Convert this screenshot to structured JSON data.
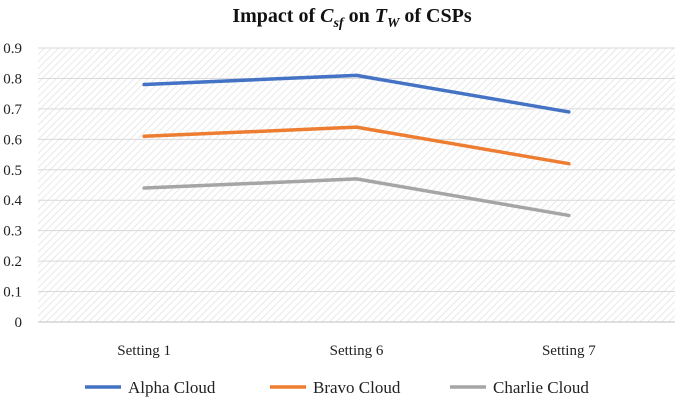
{
  "chart_data": {
    "type": "line",
    "title": {
      "prefix": "Impact of ",
      "var1_base": "C",
      "var1_sub": "sf",
      "middle": " on ",
      "var2_base": "T",
      "var2_sub": "W",
      "suffix": " of CSPs"
    },
    "categories": [
      "Setting 1",
      "Setting 6",
      "Setting 7"
    ],
    "series": [
      {
        "name": "Alpha Cloud",
        "color": "#4472c4",
        "values": [
          0.78,
          0.81,
          0.69
        ]
      },
      {
        "name": "Bravo Cloud",
        "color": "#ed7d31",
        "values": [
          0.61,
          0.64,
          0.52
        ]
      },
      {
        "name": "Charlie Cloud",
        "color": "#a5a5a5",
        "values": [
          0.44,
          0.47,
          0.35
        ]
      }
    ],
    "ylim": [
      0,
      0.9
    ],
    "yticks": [
      "0",
      "0.1",
      "0.2",
      "0.3",
      "0.4",
      "0.5",
      "0.6",
      "0.7",
      "0.8",
      "0.9"
    ],
    "xlabel": "",
    "ylabel": "",
    "grid": true,
    "legend_position": "bottom"
  }
}
